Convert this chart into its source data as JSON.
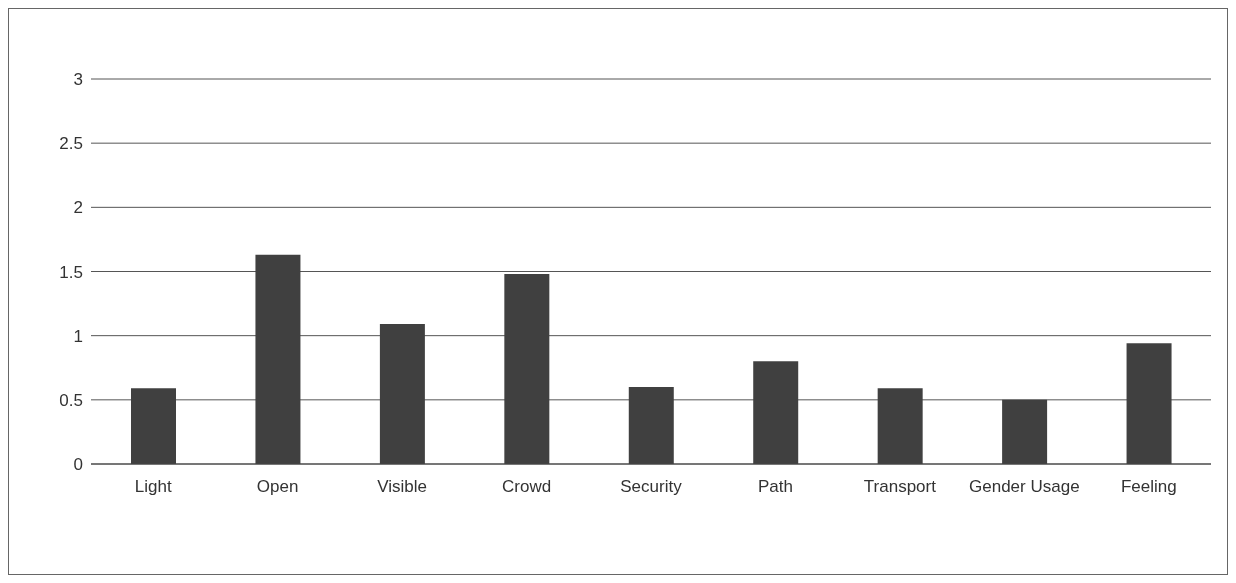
{
  "chart_data": {
    "type": "bar",
    "categories": [
      "Light",
      "Open",
      "Visible",
      "Crowd",
      "Security",
      "Path",
      "Transport",
      "Gender Usage",
      "Feeling"
    ],
    "values": [
      0.59,
      1.63,
      1.09,
      1.48,
      0.6,
      0.8,
      0.59,
      0.5,
      0.94
    ],
    "color": "#404040",
    "ylim": [
      0,
      3
    ],
    "yticks": [
      0,
      0.5,
      1,
      1.5,
      2,
      2.5,
      3
    ],
    "grid": "y"
  }
}
